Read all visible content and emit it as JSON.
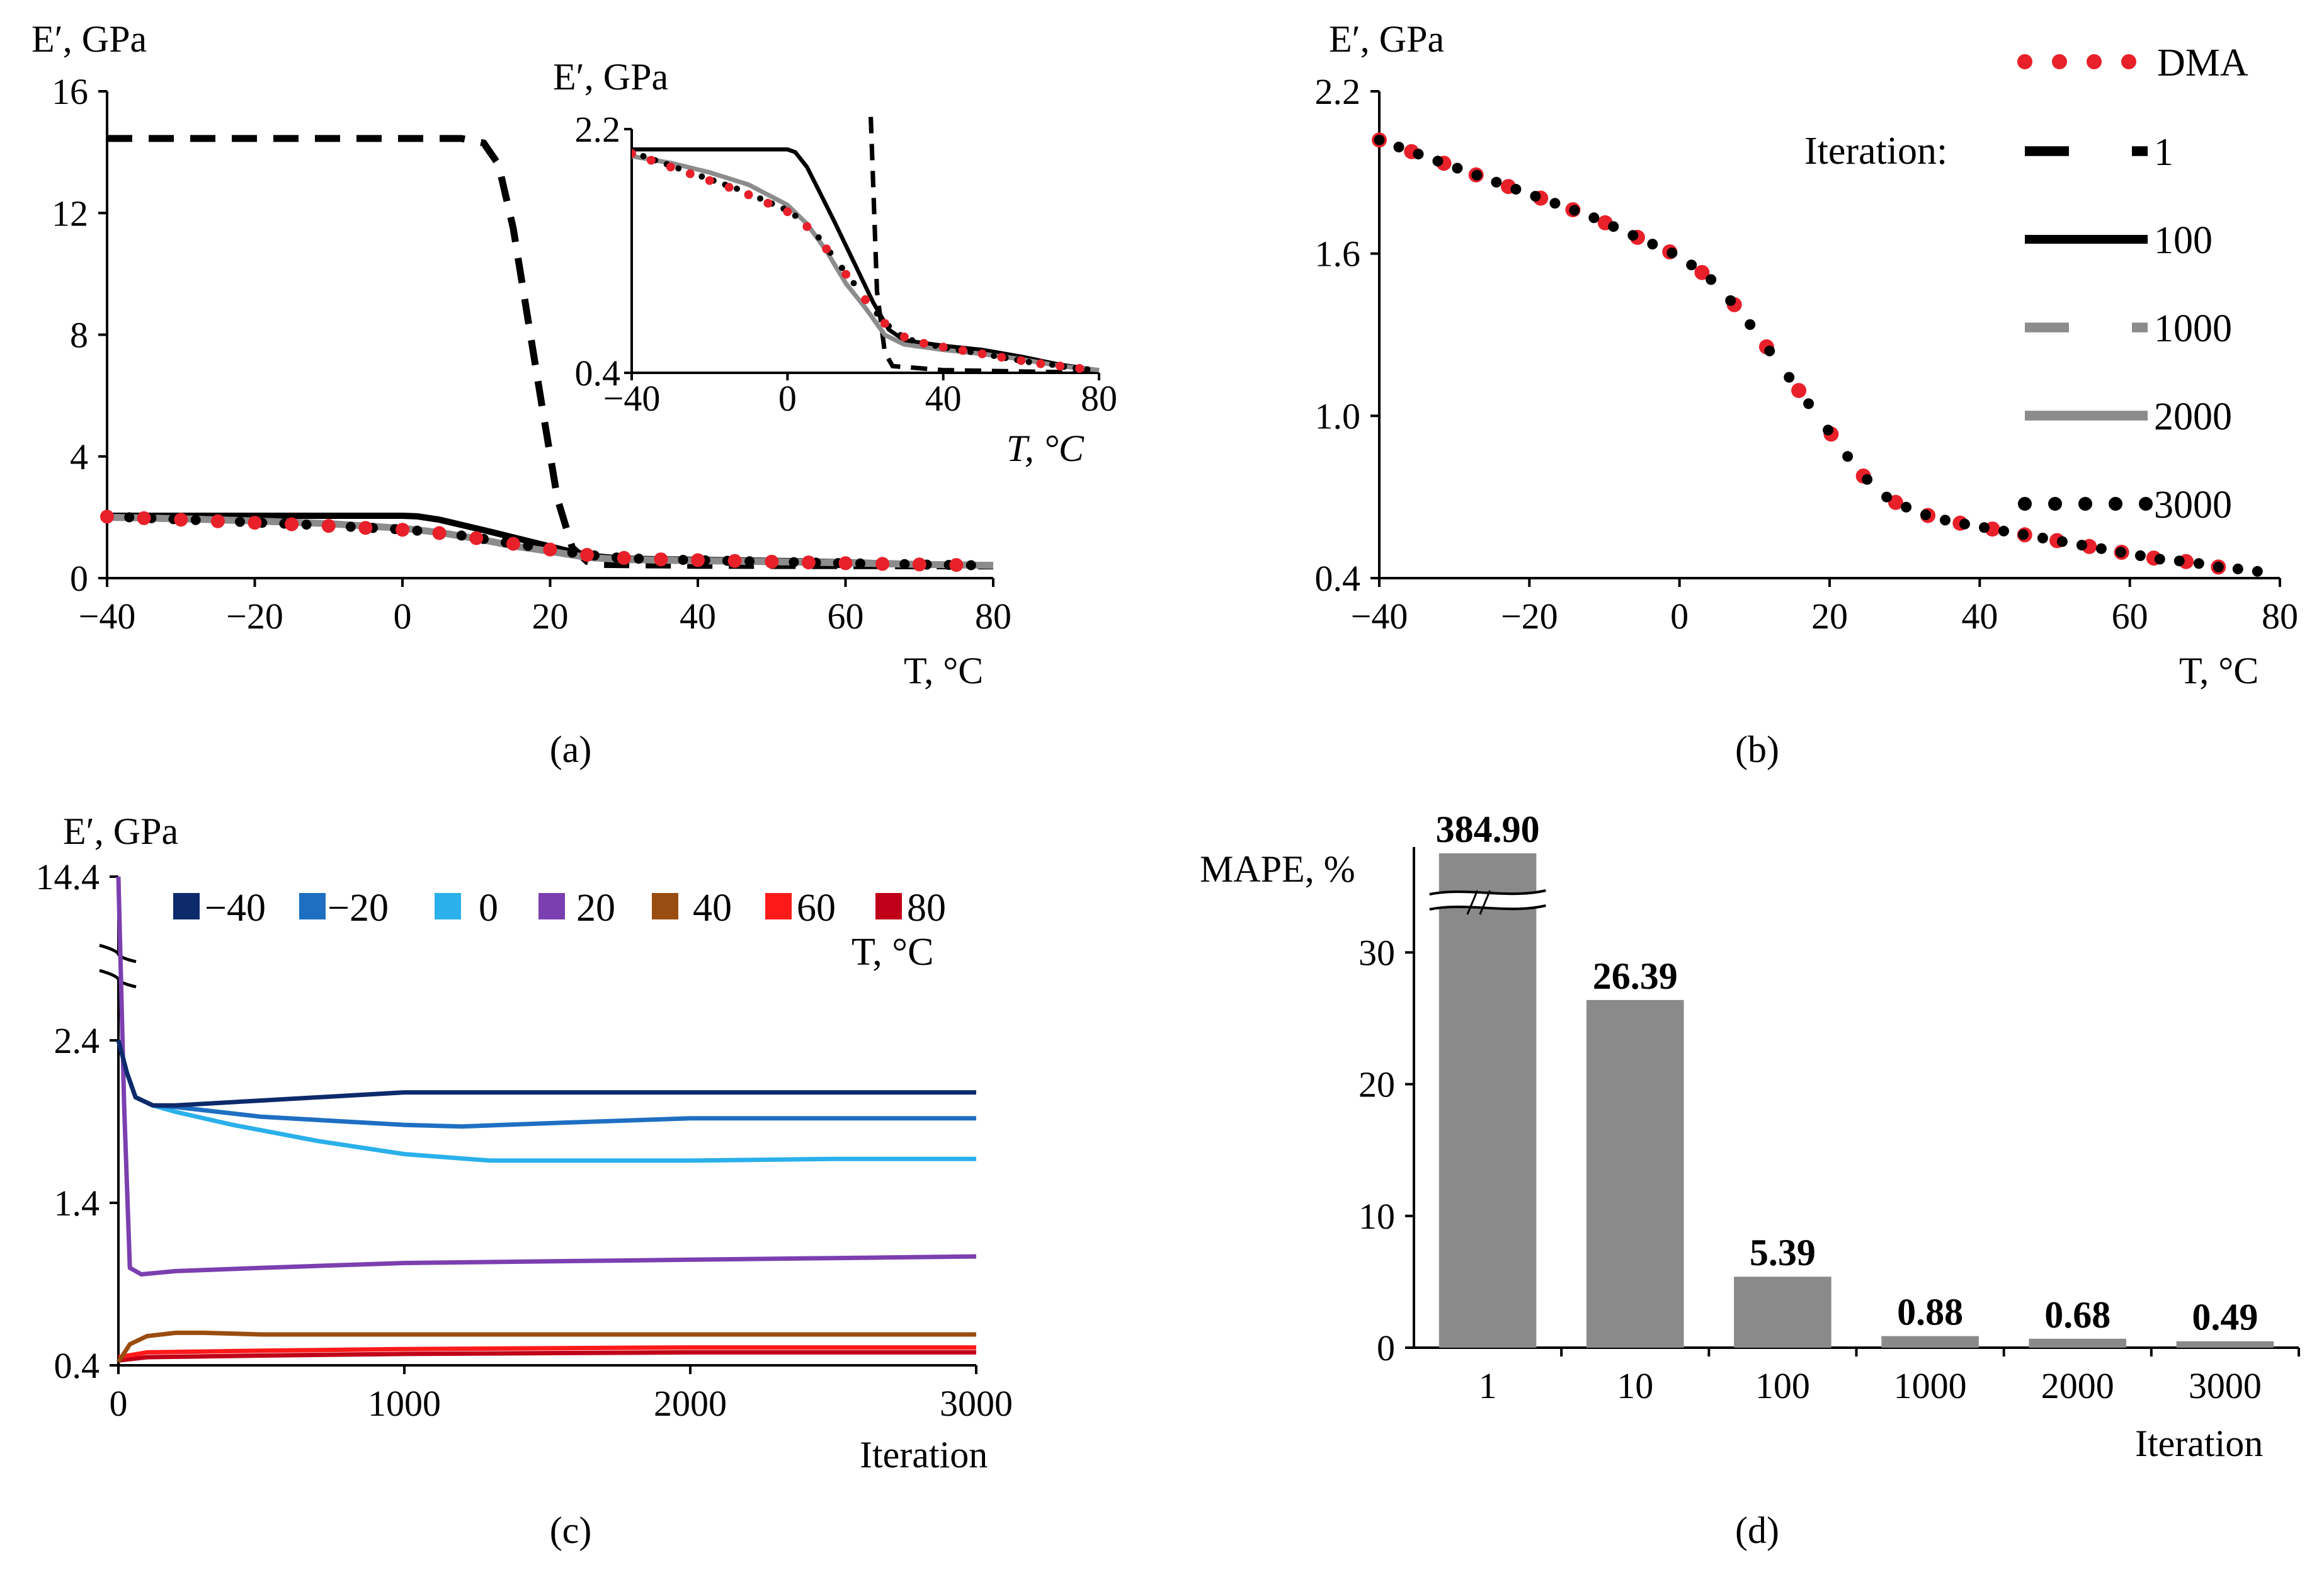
{
  "panels": {
    "a": {
      "caption": "(a)",
      "ylabel": "E′, GPa",
      "xlabel": "T, °C",
      "inset": {
        "ylabel": "E′, GPa",
        "xlabel": "T, °C"
      }
    },
    "b": {
      "caption": "(b)",
      "ylabel": "E′, GPa",
      "xlabel": "T, °C",
      "legend": {
        "heading": "Iteration:"
      }
    },
    "c": {
      "caption": "(c)",
      "ylabel": "E′, GPa",
      "xlabel": "Iteration",
      "legend": {
        "title": "T, °C"
      }
    },
    "d": {
      "caption": "(d)",
      "ylabel": "MAPE, %",
      "xlabel": "Iteration"
    }
  },
  "colors": {
    "dma": "#e8202a",
    "iter_1": "#000000",
    "iter_100": "#000000",
    "iter_1000": "#8c8c8c",
    "iter_2000": "#8c8c8c",
    "iter_3000": "#000000",
    "bar": "#8a8a8a"
  },
  "chart_data": [
    {
      "id": "a",
      "type": "line",
      "xlim": [
        -40,
        80
      ],
      "ylim": [
        0,
        16
      ],
      "xticks": [
        "−40",
        "−20",
        "0",
        "20",
        "40",
        "60",
        "80"
      ],
      "yticks": [
        "0",
        "4",
        "8",
        "12",
        "16"
      ],
      "series": [
        {
          "name": "1",
          "style": "dash",
          "x": [
            -40,
            8,
            11,
            13,
            15,
            17,
            19,
            21,
            23,
            25,
            27,
            40,
            80
          ],
          "y": [
            14.45,
            14.45,
            14.3,
            13.6,
            11.5,
            8.5,
            5.5,
            2.6,
            1.0,
            0.55,
            0.45,
            0.42,
            0.4
          ]
        },
        {
          "name": "100",
          "style": "solid-thick",
          "x": [
            -40,
            -20,
            0,
            2,
            5,
            8,
            12,
            17,
            22,
            26,
            30,
            40,
            50,
            60,
            70,
            80
          ],
          "y": [
            2.05,
            2.05,
            2.05,
            2.03,
            1.92,
            1.75,
            1.52,
            1.22,
            0.92,
            0.72,
            0.64,
            0.6,
            0.57,
            0.52,
            0.46,
            0.42
          ]
        },
        {
          "name": "1000",
          "style": "dash-gray",
          "x": [
            -40,
            -30,
            -20,
            -10,
            0,
            5,
            10,
            15,
            20,
            25,
            30,
            40,
            50,
            60,
            70,
            80
          ],
          "y": [
            2.0,
            1.95,
            1.88,
            1.79,
            1.64,
            1.5,
            1.3,
            1.06,
            0.88,
            0.68,
            0.61,
            0.57,
            0.54,
            0.5,
            0.45,
            0.42
          ]
        },
        {
          "name": "2000",
          "style": "solid-gray",
          "x": [
            -40,
            -30,
            -20,
            -10,
            0,
            5,
            10,
            15,
            20,
            25,
            30,
            40,
            50,
            60,
            70,
            80
          ],
          "y": [
            2.0,
            1.95,
            1.88,
            1.79,
            1.64,
            1.5,
            1.3,
            1.06,
            0.88,
            0.68,
            0.61,
            0.57,
            0.54,
            0.5,
            0.45,
            0.42
          ]
        },
        {
          "name": "3000",
          "style": "dot-black",
          "x": [
            -40,
            -36,
            -32,
            -28,
            -24,
            -20,
            -16,
            -12,
            -8,
            -4,
            0,
            4,
            8,
            12,
            16,
            20,
            24,
            28,
            32,
            36,
            40,
            44,
            48,
            52,
            56,
            60,
            64,
            68,
            72,
            76,
            78
          ],
          "y": [
            2.03,
            1.99,
            1.95,
            1.91,
            1.87,
            1.83,
            1.79,
            1.75,
            1.7,
            1.65,
            1.6,
            1.52,
            1.4,
            1.25,
            1.1,
            0.95,
            0.8,
            0.69,
            0.64,
            0.61,
            0.59,
            0.57,
            0.55,
            0.53,
            0.51,
            0.49,
            0.47,
            0.46,
            0.44,
            0.43,
            0.42
          ]
        },
        {
          "name": "DMA",
          "style": "dot-red",
          "x": [
            -40,
            -36,
            -32,
            -28,
            -24,
            -20,
            -16,
            -12,
            -8,
            -4,
            0,
            4,
            8,
            12,
            16,
            20,
            24,
            28,
            32,
            36,
            40,
            44,
            48,
            52,
            56,
            60,
            64,
            68,
            72,
            76
          ],
          "y": [
            2.02,
            1.98,
            1.94,
            1.9,
            1.86,
            1.82,
            1.78,
            1.74,
            1.69,
            1.64,
            1.59,
            1.51,
            1.39,
            1.24,
            1.09,
            0.94,
            0.79,
            0.69,
            0.64,
            0.61,
            0.59,
            0.57,
            0.55,
            0.53,
            0.51,
            0.49,
            0.47,
            0.46,
            0.44,
            0.43
          ]
        }
      ],
      "inset": {
        "xlim": [
          -40,
          80
        ],
        "ylim": [
          0.4,
          2.2
        ],
        "xticks": [
          "−40",
          "0",
          "40",
          "80"
        ],
        "yticks": [
          "0.4",
          "2.2"
        ]
      }
    },
    {
      "id": "b",
      "type": "line",
      "xlim": [
        -40,
        80
      ],
      "ylim": [
        0.4,
        2.2
      ],
      "xticks": [
        "−40",
        "−20",
        "0",
        "20",
        "40",
        "60",
        "80"
      ],
      "yticks": [
        "0.4",
        "1.0",
        "1.6",
        "2.2"
      ],
      "legend_placement": "right",
      "series_names": [
        "DMA",
        "1",
        "100",
        "1000",
        "2000",
        "3000"
      ],
      "x": [
        -40,
        -36,
        -32,
        -28,
        -24,
        -20,
        -16,
        -12,
        -8,
        -4,
        0,
        4,
        8,
        12,
        16,
        20,
        24,
        28,
        32,
        36,
        40,
        44,
        48,
        52,
        56,
        60,
        64,
        68,
        72,
        76,
        78
      ],
      "series": [
        {
          "name": "DMA",
          "style": "dot-red",
          "y": [
            2.02,
            1.98,
            1.94,
            1.9,
            1.86,
            1.82,
            1.78,
            1.74,
            1.69,
            1.64,
            1.59,
            1.51,
            1.39,
            1.24,
            1.09,
            0.94,
            0.79,
            0.69,
            0.64,
            0.61,
            0.59,
            0.57,
            0.55,
            0.53,
            0.51,
            0.49,
            0.47,
            0.46,
            0.44,
            0.43,
            0.42
          ]
        },
        {
          "name": "3000",
          "style": "dot-black",
          "y": [
            2.02,
            1.98,
            1.94,
            1.9,
            1.86,
            1.82,
            1.78,
            1.74,
            1.69,
            1.64,
            1.59,
            1.51,
            1.39,
            1.24,
            1.09,
            0.94,
            0.79,
            0.69,
            0.64,
            0.61,
            0.59,
            0.57,
            0.55,
            0.53,
            0.51,
            0.49,
            0.47,
            0.46,
            0.44,
            0.43,
            0.42
          ]
        }
      ]
    },
    {
      "id": "c",
      "type": "line",
      "xlim": [
        0,
        3000
      ],
      "ylim_display": [
        "0.4",
        "1.4",
        "2.4",
        "14.4"
      ],
      "xticks": [
        "0",
        "1000",
        "2000",
        "3000"
      ],
      "legend_placement": "top",
      "series": [
        {
          "name": "−40",
          "color": "#0d2a6b",
          "x": [
            0,
            30,
            60,
            120,
            200,
            500,
            1000,
            1500,
            2000,
            2500,
            3000
          ],
          "y": [
            2.4,
            2.2,
            2.05,
            2.0,
            2.0,
            2.03,
            2.08,
            2.08,
            2.08,
            2.08,
            2.08
          ]
        },
        {
          "name": "−20",
          "color": "#1e6fc2",
          "x": [
            0,
            30,
            60,
            120,
            200,
            500,
            1000,
            1200,
            1500,
            2000,
            2500,
            3000
          ],
          "y": [
            2.4,
            2.2,
            2.05,
            2.0,
            1.99,
            1.93,
            1.88,
            1.87,
            1.89,
            1.92,
            1.92,
            1.92
          ]
        },
        {
          "name": "0",
          "color": "#2ab0ea",
          "x": [
            0,
            30,
            60,
            120,
            200,
            400,
            700,
            1000,
            1300,
            1600,
            2000,
            2500,
            3000
          ],
          "y": [
            2.4,
            2.2,
            2.05,
            2.0,
            1.96,
            1.88,
            1.78,
            1.7,
            1.66,
            1.66,
            1.66,
            1.67,
            1.67
          ]
        },
        {
          "name": "20",
          "color": "#7b3fb0",
          "x": [
            0,
            20,
            40,
            80,
            200,
            500,
            1000,
            1500,
            2000,
            2500,
            3000
          ],
          "y": [
            14.4,
            2.0,
            1.0,
            0.96,
            0.98,
            1.0,
            1.03,
            1.04,
            1.05,
            1.06,
            1.07
          ]
        },
        {
          "name": "40",
          "color": "#9a4d10",
          "x": [
            0,
            40,
            100,
            200,
            300,
            500,
            1000,
            2000,
            3000
          ],
          "y": [
            0.42,
            0.53,
            0.58,
            0.6,
            0.6,
            0.59,
            0.59,
            0.59,
            0.59
          ]
        },
        {
          "name": "60",
          "color": "#ff1a1a",
          "x": [
            0,
            100,
            500,
            1000,
            2000,
            3000
          ],
          "y": [
            0.45,
            0.48,
            0.49,
            0.5,
            0.51,
            0.51
          ]
        },
        {
          "name": "80",
          "color": "#c00018",
          "x": [
            0,
            100,
            500,
            1000,
            2000,
            3000
          ],
          "y": [
            0.43,
            0.45,
            0.46,
            0.47,
            0.48,
            0.48
          ]
        }
      ]
    },
    {
      "id": "d",
      "type": "bar",
      "categories": [
        "1",
        "10",
        "100",
        "1000",
        "2000",
        "3000"
      ],
      "values": [
        384.9,
        26.39,
        5.39,
        0.88,
        0.68,
        0.49
      ],
      "value_labels": [
        "384.90",
        "26.39",
        "5.39",
        "0.88",
        "0.68",
        "0.49"
      ],
      "ylim": [
        0,
        38
      ],
      "yticks": [
        "0",
        "10",
        "20",
        "30"
      ],
      "axis_break": true
    }
  ]
}
